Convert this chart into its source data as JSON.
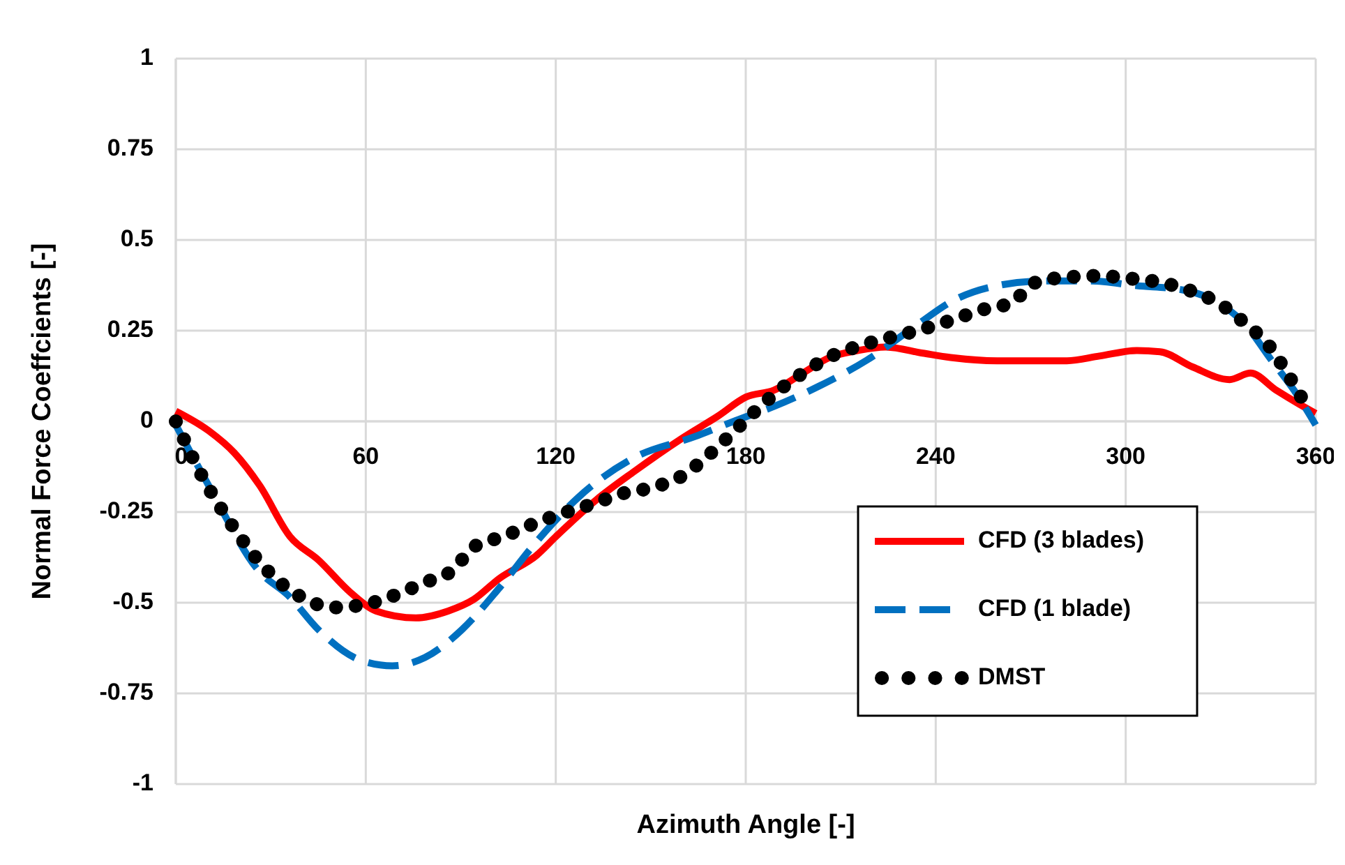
{
  "chart_data": {
    "type": "line",
    "xlabel": "Azimuth Angle [-]",
    "ylabel": "Normal Force Coeffcients [-]",
    "xlim": [
      0,
      360
    ],
    "xticks": [
      0,
      60,
      120,
      180,
      240,
      300,
      360
    ],
    "ylim": [
      -1,
      1
    ],
    "yticks": [
      -1,
      -0.75,
      -0.5,
      -0.25,
      0,
      0.25,
      0.5,
      0.75,
      1
    ],
    "grid": true,
    "legend": "bottom right",
    "series": [
      {
        "name": "CFD (3 blades)",
        "color": "#ff0000",
        "line_style": "solid",
        "marker": "none",
        "x": [
          0,
          10.4,
          18.5,
          26.5,
          36.1,
          45,
          55.2,
          63.3,
          75.8,
          86,
          94.1,
          102.2,
          114,
          120,
          133,
          144.8,
          159.5,
          171.3,
          180.1,
          188.9,
          197.7,
          206.5,
          215.3,
          224.1,
          235.9,
          244.7,
          259.4,
          281.4,
          291.7,
          303.5,
          310.8,
          321.1,
          332.8,
          339.4,
          347.5,
          354.9,
          360
        ],
        "values": [
          0.028,
          -0.026,
          -0.087,
          -0.177,
          -0.318,
          -0.382,
          -0.472,
          -0.523,
          -0.542,
          -0.523,
          -0.491,
          -0.433,
          -0.369,
          -0.318,
          -0.215,
          -0.138,
          -0.049,
          0.015,
          0.067,
          0.086,
          0.131,
          0.176,
          0.195,
          0.205,
          0.188,
          0.176,
          0.167,
          0.167,
          0.18,
          0.195,
          0.192,
          0.15,
          0.115,
          0.133,
          0.086,
          0.047,
          0.022
        ]
      },
      {
        "name": "CFD (1 blade)",
        "color": "#0070c0",
        "line_style": "dashed",
        "marker": "none",
        "x": [
          0,
          11.2,
          25.8,
          36.1,
          45,
          58.2,
          68.4,
          78.7,
          90.4,
          102.2,
          114,
          127.2,
          144.8,
          163.9,
          177.1,
          188.9,
          203.6,
          218.3,
          233,
          246.2,
          259.4,
          274,
          288.8,
          303.5,
          318.2,
          329.9,
          337.2,
          346,
          353.6,
          360
        ],
        "values": [
          -0.01,
          -0.19,
          -0.408,
          -0.485,
          -0.574,
          -0.658,
          -0.674,
          -0.651,
          -0.574,
          -0.459,
          -0.331,
          -0.209,
          -0.1,
          -0.042,
          0.003,
          0.041,
          0.099,
          0.169,
          0.259,
          0.336,
          0.374,
          0.387,
          0.387,
          0.374,
          0.362,
          0.323,
          0.272,
          0.169,
          0.08,
          -0.01
        ]
      },
      {
        "name": "DMST",
        "color": "#000000",
        "line_style": "dotted",
        "marker": "none",
        "x": [
          0,
          4.1,
          8.7,
          13.7,
          19.2,
          25.3,
          32,
          40.2,
          49.8,
          59.6,
          69,
          78.4,
          87.5,
          94,
          103.7,
          112.8,
          122,
          131.6,
          141,
          150.7,
          160.2,
          168,
          175.2,
          182.5,
          190,
          198,
          206.6,
          215.9,
          225.6,
          235.3,
          244.7,
          254.4,
          264,
          271.6,
          281.1,
          291.3,
          301.1,
          311,
          320.8,
          329.9,
          337.7,
          345.2,
          350.6,
          355.6
        ],
        "values": [
          0,
          -0.078,
          -0.158,
          -0.232,
          -0.305,
          -0.376,
          -0.437,
          -0.487,
          -0.513,
          -0.505,
          -0.48,
          -0.445,
          -0.41,
          -0.347,
          -0.317,
          -0.283,
          -0.254,
          -0.228,
          -0.199,
          -0.182,
          -0.149,
          -0.095,
          -0.037,
          0.024,
          0.082,
          0.133,
          0.178,
          0.208,
          0.231,
          0.253,
          0.278,
          0.307,
          0.328,
          0.383,
          0.397,
          0.401,
          0.394,
          0.383,
          0.359,
          0.323,
          0.27,
          0.209,
          0.138,
          0.064
        ]
      }
    ]
  }
}
